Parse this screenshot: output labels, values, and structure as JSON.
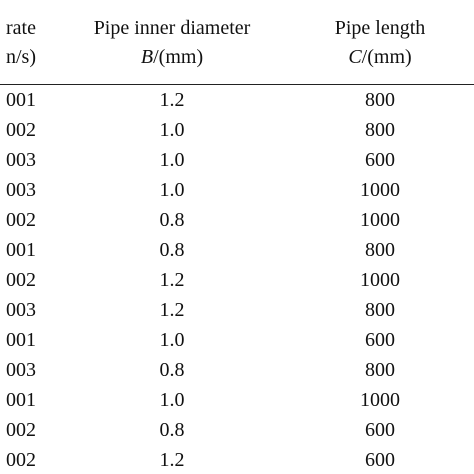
{
  "table": {
    "header": [
      {
        "line1": "rate",
        "line2": "n/s)"
      },
      {
        "line1": "Pipe inner diameter",
        "symbol": "B",
        "unit": "/(mm)"
      },
      {
        "line1": "Pipe length",
        "symbol": "C",
        "unit": "/(mm)"
      }
    ],
    "rows": [
      [
        "001",
        "1.2",
        "800"
      ],
      [
        "002",
        "1.0",
        "800"
      ],
      [
        "003",
        "1.0",
        "600"
      ],
      [
        "003",
        "1.0",
        "1000"
      ],
      [
        "002",
        "0.8",
        "1000"
      ],
      [
        "001",
        "0.8",
        "800"
      ],
      [
        "002",
        "1.2",
        "1000"
      ],
      [
        "003",
        "1.2",
        "800"
      ],
      [
        "001",
        "1.0",
        "600"
      ],
      [
        "003",
        "0.8",
        "800"
      ],
      [
        "001",
        "1.0",
        "1000"
      ],
      [
        "002",
        "0.8",
        "600"
      ],
      [
        "002",
        "1.2",
        "600"
      ]
    ]
  }
}
